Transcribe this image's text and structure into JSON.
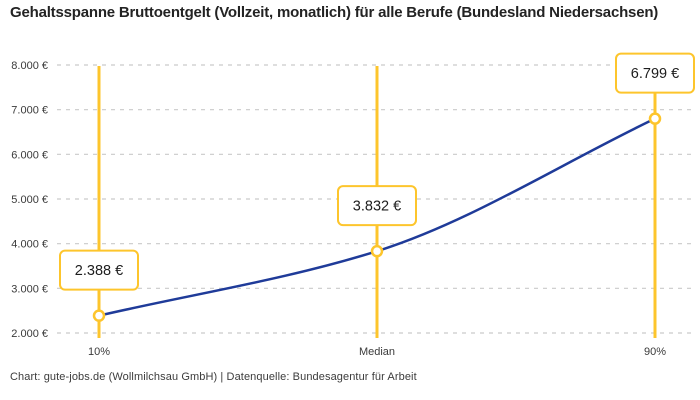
{
  "header": {
    "title": "Gehaltsspanne Bruttoentgelt (Vollzeit, monatlich) für alle Berufe (Bundesland Niedersachsen)"
  },
  "footer": {
    "credit": "Chart: gute-jobs.de (Wollmilchsau GmbH) | Datenquelle: Bundesagentur für Arbeit"
  },
  "colors": {
    "background": "#FFFFFF",
    "accent_yellow": "#FDC52C",
    "line_blue": "#1F3B99",
    "grid_gray": "#C9C9C9",
    "title_text": "#232323",
    "axis_text": "#3A3A3A",
    "label_text": "#1D1D1D",
    "footer_text": "#3C3C3C",
    "box_fill": "#FFFFFF"
  },
  "chart_data": {
    "type": "line",
    "title": "Gehaltsspanne Bruttoentgelt (Vollzeit, monatlich) für alle Berufe (Bundesland Niedersachsen)",
    "categories": [
      "10%",
      "Median",
      "90%"
    ],
    "values": [
      2388,
      3832,
      6799
    ],
    "point_labels": [
      "2.388 €",
      "3.832 €",
      "6.799 €"
    ],
    "xlabel": "",
    "ylabel": "",
    "ylim": [
      2000,
      8000
    ],
    "y_ticks": [
      {
        "value": 8000,
        "label": "8.000 €"
      },
      {
        "value": 7000,
        "label": "7.000 €"
      },
      {
        "value": 6000,
        "label": "6.000 €"
      },
      {
        "value": 5000,
        "label": "5.000 €"
      },
      {
        "value": 4000,
        "label": "4.000 €"
      },
      {
        "value": 3000,
        "label": "3.000 €"
      },
      {
        "value": 2000,
        "label": "2.000 €"
      }
    ],
    "grid": "horizontal-dashed",
    "legend": "none",
    "interpolation": "monotone",
    "marker_style": "vertical-line-with-circle-and-value-box"
  }
}
